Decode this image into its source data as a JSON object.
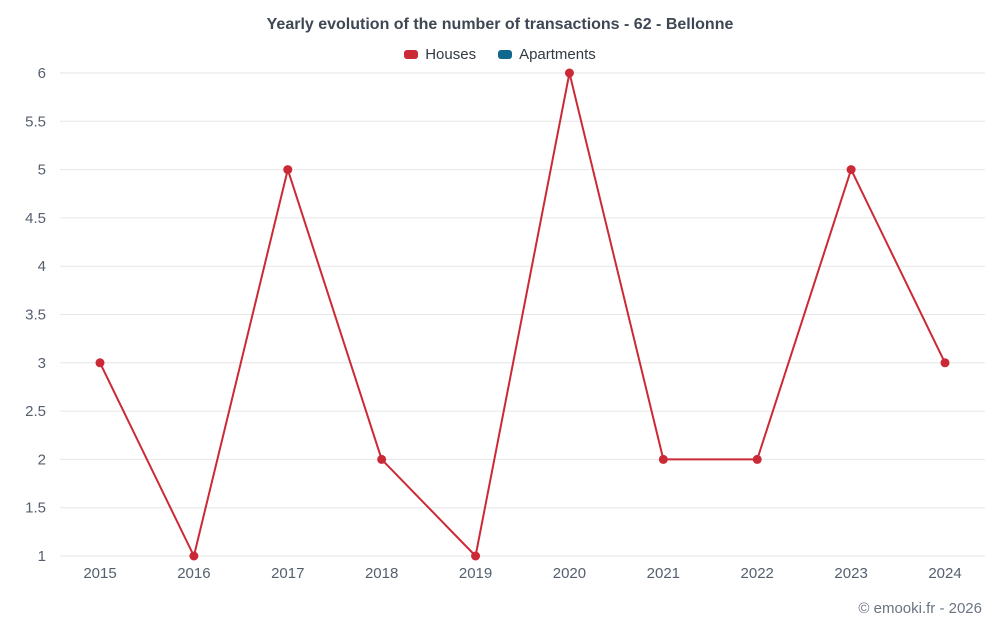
{
  "page": {
    "footer_credit": "© emooki.fr - 2026"
  },
  "chart_data": {
    "type": "line",
    "title": "Yearly evolution of the number of transactions - 62 - Bellonne",
    "categories": [
      "2015",
      "2016",
      "2017",
      "2018",
      "2019",
      "2020",
      "2021",
      "2022",
      "2023",
      "2024"
    ],
    "series": [
      {
        "name": "Houses",
        "color": "#cc2936",
        "values": [
          3,
          1,
          5,
          2,
          1,
          6,
          2,
          2,
          5,
          3
        ]
      },
      {
        "name": "Apartments",
        "color": "#11688f",
        "values": []
      }
    ],
    "xlabel": "",
    "ylabel": "",
    "ylim": [
      1,
      6
    ],
    "ytick_step": 0.5,
    "grid": "horizontal",
    "legend_position": "top",
    "colors": {
      "grid": "#e6e6e6",
      "tick_text": "#55606e",
      "title_text": "#3e4753"
    }
  }
}
